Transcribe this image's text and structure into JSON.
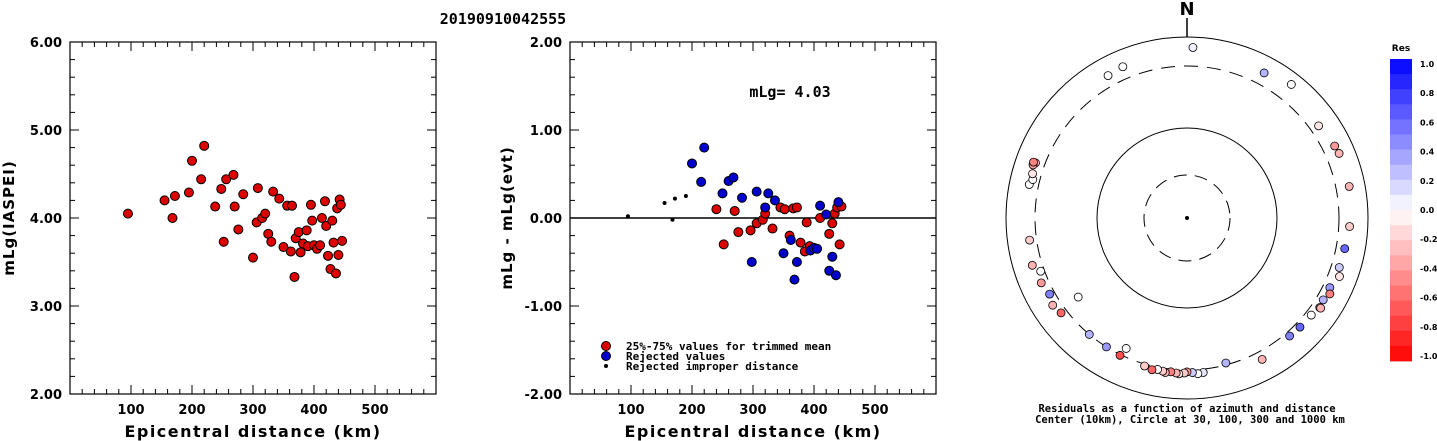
{
  "title": "20190910042555",
  "chart_data": [
    {
      "type": "scatter",
      "xlabel": "Epicentral distance (km)",
      "ylabel": "mLg(IASPEI)",
      "xlim": [
        0,
        600
      ],
      "ylim": [
        2.0,
        6.0
      ],
      "x_ticks": [
        "100",
        "200",
        "300",
        "400",
        "500"
      ],
      "y_ticks": [
        "2.00",
        "3.00",
        "4.00",
        "5.00",
        "6.00"
      ],
      "series": [
        {
          "color": "#dd0000",
          "points": [
            [
              95,
              4.05
            ],
            [
              155,
              4.2
            ],
            [
              168,
              4.0
            ],
            [
              172,
              4.25
            ],
            [
              195,
              4.29
            ],
            [
              200,
              4.65
            ],
            [
              215,
              4.44
            ],
            [
              220,
              4.82
            ],
            [
              238,
              4.13
            ],
            [
              248,
              4.33
            ],
            [
              252,
              3.73
            ],
            [
              256,
              4.44
            ],
            [
              268,
              4.49
            ],
            [
              270,
              4.13
            ],
            [
              276,
              3.87
            ],
            [
              284,
              4.27
            ],
            [
              300,
              3.55
            ],
            [
              306,
              3.95
            ],
            [
              308,
              4.34
            ],
            [
              315,
              4.0
            ],
            [
              320,
              4.05
            ],
            [
              325,
              3.82
            ],
            [
              330,
              3.73
            ],
            [
              333,
              4.3
            ],
            [
              343,
              4.22
            ],
            [
              350,
              3.67
            ],
            [
              356,
              4.14
            ],
            [
              362,
              3.62
            ],
            [
              364,
              4.14
            ],
            [
              368,
              3.33
            ],
            [
              370,
              3.77
            ],
            [
              375,
              3.84
            ],
            [
              378,
              3.61
            ],
            [
              382,
              3.71
            ],
            [
              388,
              3.86
            ],
            [
              390,
              3.68
            ],
            [
              395,
              4.15
            ],
            [
              397,
              3.97
            ],
            [
              400,
              3.69
            ],
            [
              405,
              3.65
            ],
            [
              410,
              3.69
            ],
            [
              413,
              4.0
            ],
            [
              418,
              4.19
            ],
            [
              420,
              3.91
            ],
            [
              423,
              3.57
            ],
            [
              427,
              3.42
            ],
            [
              430,
              3.97
            ],
            [
              432,
              3.72
            ],
            [
              436,
              3.37
            ],
            [
              438,
              4.11
            ],
            [
              440,
              3.58
            ],
            [
              442,
              4.21
            ],
            [
              444,
              4.15
            ],
            [
              446,
              3.74
            ]
          ]
        }
      ]
    },
    {
      "type": "scatter",
      "xlabel": "Epicentral distance (km)",
      "ylabel": "mLg - mLg(evt)",
      "xlim": [
        0,
        600
      ],
      "ylim": [
        -2.0,
        2.0
      ],
      "x_ticks": [
        "100",
        "200",
        "300",
        "400",
        "500"
      ],
      "y_ticks": [
        "-2.00",
        "-1.00",
        "0.00",
        "1.00",
        "2.00"
      ],
      "annotation": "mLg= 4.03",
      "reference_line": 0.0,
      "series": [
        {
          "name": "25%-75% values for trimmed mean",
          "color": "#dd0000",
          "points": [
            [
              240,
              0.1
            ],
            [
              252,
              -0.3
            ],
            [
              270,
              0.08
            ],
            [
              276,
              -0.16
            ],
            [
              296,
              -0.14
            ],
            [
              306,
              -0.06
            ],
            [
              316,
              -0.02
            ],
            [
              320,
              0.05
            ],
            [
              332,
              -0.12
            ],
            [
              345,
              0.12
            ],
            [
              352,
              0.1
            ],
            [
              360,
              -0.2
            ],
            [
              366,
              0.11
            ],
            [
              372,
              0.12
            ],
            [
              378,
              -0.28
            ],
            [
              385,
              -0.38
            ],
            [
              388,
              -0.05
            ],
            [
              393,
              -0.32
            ],
            [
              410,
              0.0
            ],
            [
              425,
              -0.18
            ],
            [
              430,
              -0.06
            ],
            [
              434,
              0.05
            ],
            [
              438,
              0.12
            ],
            [
              442,
              -0.3
            ],
            [
              445,
              0.13
            ]
          ]
        },
        {
          "name": "Rejected values",
          "color": "#0000cc",
          "points": [
            [
              200,
              0.62
            ],
            [
              215,
              0.41
            ],
            [
              220,
              0.8
            ],
            [
              250,
              0.28
            ],
            [
              260,
              0.42
            ],
            [
              268,
              0.46
            ],
            [
              282,
              0.23
            ],
            [
              298,
              -0.5
            ],
            [
              306,
              0.3
            ],
            [
              320,
              0.12
            ],
            [
              325,
              0.28
            ],
            [
              336,
              0.2
            ],
            [
              350,
              -0.4
            ],
            [
              362,
              -0.25
            ],
            [
              368,
              -0.7
            ],
            [
              372,
              -0.5
            ],
            [
              394,
              -0.37
            ],
            [
              400,
              -0.34
            ],
            [
              405,
              -0.35
            ],
            [
              410,
              0.14
            ],
            [
              420,
              0.04
            ],
            [
              425,
              -0.6
            ],
            [
              430,
              -0.44
            ],
            [
              436,
              -0.65
            ],
            [
              440,
              0.18
            ]
          ]
        },
        {
          "name": "Rejected improper distance",
          "color": "#000000",
          "points": [
            [
              95,
              0.02
            ],
            [
              155,
              0.17
            ],
            [
              168,
              -0.02
            ],
            [
              172,
              0.22
            ],
            [
              190,
              0.25
            ]
          ]
        }
      ]
    },
    {
      "type": "polar-scatter",
      "north_label": "N",
      "caption_line1": "Residuals as a function of azimuth and distance",
      "caption_line2": "Center (10km), Circle at 30, 100, 300 and 1000 km",
      "rings_km": [
        30,
        100,
        300,
        1000
      ],
      "colorbar": {
        "title": "Res",
        "labels": [
          "1.0",
          "0.8",
          "0.6",
          "0.4",
          "0.2",
          "0.0",
          "-0.2",
          "-0.4",
          "-0.6",
          "-0.8",
          "-1.0"
        ],
        "positive_color": "#0000ff",
        "negative_color": "#ff0000"
      },
      "stations": [
        {
          "az": 2,
          "dist": 650,
          "res": 0.05
        },
        {
          "az": -23,
          "dist": 500,
          "res": 0.0
        },
        {
          "az": 28,
          "dist": 500,
          "res": 0.3
        },
        {
          "az": 38,
          "dist": 620,
          "res": 0.0
        },
        {
          "az": 55,
          "dist": 430,
          "res": -0.1
        },
        {
          "az": 64,
          "dist": 500,
          "res": -0.4
        },
        {
          "az": 67,
          "dist": 520,
          "res": -0.3
        },
        {
          "az": 79,
          "dist": 520,
          "res": -0.3
        },
        {
          "az": 93,
          "dist": 470,
          "res": -0.2
        },
        {
          "az": 101,
          "dist": 430,
          "res": 0.6
        },
        {
          "az": 108,
          "dist": 420,
          "res": 0.2
        },
        {
          "az": 111,
          "dist": 480,
          "res": -0.1
        },
        {
          "az": 116,
          "dist": 400,
          "res": 0.4
        },
        {
          "az": 118,
          "dist": 450,
          "res": -0.5
        },
        {
          "az": 121,
          "dist": 400,
          "res": 0.3
        },
        {
          "az": 124,
          "dist": 420,
          "res": -0.2
        },
        {
          "az": 124,
          "dist": 440,
          "res": -0.3
        },
        {
          "az": 128,
          "dist": 380,
          "res": 0.0
        },
        {
          "az": 134,
          "dist": 370,
          "res": 0.6
        },
        {
          "az": 139,
          "dist": 360,
          "res": 0.5
        },
        {
          "az": 152,
          "dist": 420,
          "res": -0.3
        },
        {
          "az": 165,
          "dist": 290,
          "res": 0.3
        },
        {
          "az": 174,
          "dist": 345,
          "res": 0.1
        },
        {
          "az": 176,
          "dist": 355,
          "res": 0.0
        },
        {
          "az": 178,
          "dist": 335,
          "res": 0.2
        },
        {
          "az": 180,
          "dist": 325,
          "res": -0.4
        },
        {
          "az": 181,
          "dist": 340,
          "res": -0.2
        },
        {
          "az": 183,
          "dist": 355,
          "res": -0.1
        },
        {
          "az": 184,
          "dist": 345,
          "res": -0.3
        },
        {
          "az": 186,
          "dist": 335,
          "res": -0.5
        },
        {
          "az": 188,
          "dist": 355,
          "res": -0.3
        },
        {
          "az": 189,
          "dist": 340,
          "res": -0.2
        },
        {
          "az": 191,
          "dist": 330,
          "res": 0.0
        },
        {
          "az": 193,
          "dist": 350,
          "res": -0.6
        },
        {
          "az": 196,
          "dist": 325,
          "res": -0.2
        },
        {
          "az": 205,
          "dist": 260,
          "res": 0.0
        },
        {
          "az": 206,
          "dist": 310,
          "res": -0.7
        },
        {
          "az": 212,
          "dist": 300,
          "res": 0.4
        },
        {
          "az": 220,
          "dist": 300,
          "res": 0.3
        },
        {
          "az": 233,
          "dist": 380,
          "res": -0.6
        },
        {
          "az": 234,
          "dist": 220,
          "res": 0.0
        },
        {
          "az": 237,
          "dist": 420,
          "res": -0.3
        },
        {
          "az": 241,
          "dist": 370,
          "res": 0.5
        },
        {
          "az": 246,
          "dist": 410,
          "res": -0.4
        },
        {
          "az": 250,
          "dist": 350,
          "res": 0.0
        },
        {
          "az": 253,
          "dist": 450,
          "res": -0.3
        },
        {
          "az": 262,
          "dist": 400,
          "res": -0.2
        },
        {
          "az": 282,
          "dist": 440,
          "res": 0.0
        },
        {
          "az": 284,
          "dist": 400,
          "res": 0.0
        },
        {
          "az": 286,
          "dist": 430,
          "res": -0.1
        },
        {
          "az": 290,
          "dist": 440,
          "res": -0.3
        },
        {
          "az": 289,
          "dist": 470,
          "res": -0.4
        },
        {
          "az": 290,
          "dist": 480,
          "res": -0.5
        },
        {
          "az": 331,
          "dist": 470,
          "res": 0.0
        }
      ]
    }
  ]
}
